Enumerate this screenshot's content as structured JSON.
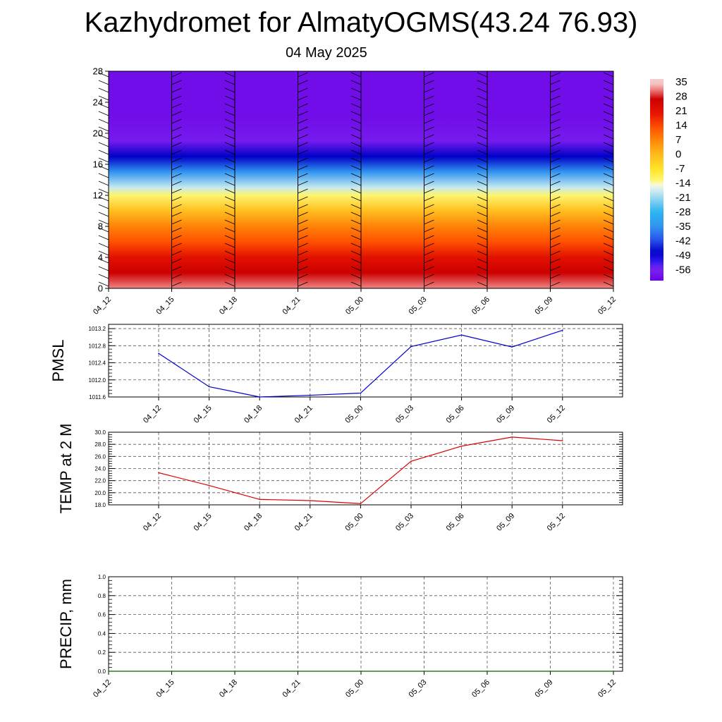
{
  "title": "Kazhydromet for AlmatyOGMS(43.24 76.93)",
  "subtitle": "04 May 2025",
  "colors": {
    "pmsl_line": "#0000cc",
    "temp_line": "#dd0000",
    "precip_line": "#006400",
    "grid": "#555555"
  },
  "chart_data": [
    {
      "type": "heatmap",
      "name": "cross-section",
      "x_ticks": [
        "04_12",
        "04_15",
        "04_18",
        "04_21",
        "05_00",
        "05_03",
        "05_06",
        "05_09",
        "05_12"
      ],
      "y_ticks": [
        "0",
        "4",
        "8",
        "12",
        "16",
        "20",
        "24",
        "28"
      ],
      "ylim": [
        0,
        28
      ],
      "colorbar_labels": [
        "35",
        "28",
        "21",
        "14",
        "7",
        "0",
        "-7",
        "-14",
        "-21",
        "-28",
        "-35",
        "-42",
        "-49",
        "-56"
      ],
      "level_temperatures": [
        [
          0,
          33
        ],
        [
          2,
          28
        ],
        [
          4,
          22
        ],
        [
          6,
          14
        ],
        [
          8,
          8
        ],
        [
          10,
          0
        ],
        [
          12,
          -12
        ],
        [
          13,
          -18
        ],
        [
          15,
          -35
        ],
        [
          17,
          -48
        ],
        [
          19,
          -58
        ],
        [
          22,
          -60
        ],
        [
          28,
          -60
        ]
      ]
    },
    {
      "type": "line",
      "name": "pmsl",
      "ylabel": "PMSL",
      "categories": [
        "04_12",
        "04_15",
        "04_18",
        "04_21",
        "05_00",
        "05_03",
        "05_06",
        "05_09",
        "05_12"
      ],
      "y_ticks": [
        "1011.6",
        "1012.0",
        "1012.4",
        "1012.8",
        "1013.2"
      ],
      "ylim": [
        1011.6,
        1013.3
      ],
      "values": [
        1012.62,
        1011.84,
        1011.6,
        1011.64,
        1011.69,
        1012.78,
        1013.05,
        1012.77,
        1013.16
      ]
    },
    {
      "type": "line",
      "name": "temp",
      "ylabel": "TEMP at 2 M",
      "categories": [
        "04_12",
        "04_15",
        "04_18",
        "04_21",
        "05_00",
        "05_03",
        "05_06",
        "05_09",
        "05_12"
      ],
      "y_ticks": [
        "18.0",
        "20.0",
        "22.0",
        "24.0",
        "26.0",
        "28.0",
        "30.0"
      ],
      "ylim": [
        18,
        30
      ],
      "values": [
        23.3,
        21.2,
        18.9,
        18.7,
        18.2,
        25.2,
        27.7,
        29.2,
        28.6
      ]
    },
    {
      "type": "line",
      "name": "precip",
      "ylabel": "PRECIP, mm",
      "categories": [
        "04_12",
        "04_15",
        "04_18",
        "04_21",
        "05_00",
        "05_03",
        "05_06",
        "05_09",
        "05_12"
      ],
      "y_ticks": [
        "0.0",
        "0.2",
        "0.4",
        "0.6",
        "0.8",
        "1.0"
      ],
      "ylim": [
        0,
        1
      ],
      "values": [
        0,
        0,
        0,
        0,
        0,
        0,
        0,
        0,
        0
      ]
    }
  ]
}
